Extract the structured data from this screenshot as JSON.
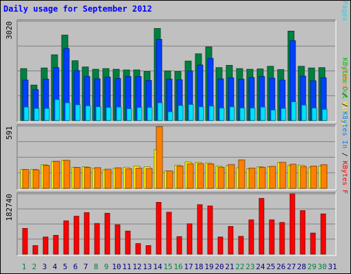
{
  "colors": {
    "background": "#c0c0c0",
    "hits": "#008040",
    "files": "#0040ff",
    "pages": "#00e0ff",
    "visits": "#ffff00",
    "sites": "#ff8000",
    "kbin": "#0080ff",
    "kbout": "#00c000",
    "kbf": "#ff0000",
    "title": "#0000ff",
    "weekend": "#008040",
    "weekday": "#000080"
  },
  "chart_data": {
    "type": "bar",
    "title": "Daily usage for September 2012",
    "x": [
      "1",
      "2",
      "3",
      "4",
      "5",
      "6",
      "7",
      "8",
      "9",
      "10",
      "11",
      "12",
      "13",
      "14",
      "15",
      "16",
      "17",
      "18",
      "19",
      "20",
      "21",
      "22",
      "23",
      "24",
      "25",
      "26",
      "27",
      "28",
      "29",
      "30",
      "31"
    ],
    "weekend_days": [
      "1",
      "2",
      "8",
      "9",
      "15",
      "16",
      "22",
      "23",
      "29",
      "30"
    ],
    "panels": [
      {
        "name": "top",
        "ymax_label": "3020",
        "ymax": 3020,
        "right_label": [
          {
            "text": "Pages",
            "color": "#00e0ff"
          },
          {
            "text": " / ",
            "color": "#000000"
          },
          {
            "text": "Files",
            "color": "#0040ff"
          },
          {
            "text": " / ",
            "color": "#000000"
          },
          {
            "text": "Hits",
            "color": "#008040"
          }
        ],
        "series": [
          {
            "name": "Hits",
            "values": [
              1580,
              1080,
              1600,
              2000,
              2600,
              1820,
              1630,
              1560,
              1580,
              1560,
              1540,
              1540,
              1490,
              2800,
              1510,
              1490,
              1810,
              2030,
              2240,
              1610,
              1680,
              1580,
              1560,
              1570,
              1650,
              1550,
              2720,
              1650,
              1600,
              1610,
              null
            ]
          },
          {
            "name": "Files",
            "values": [
              1230,
              940,
              1260,
              1610,
              2190,
              1520,
              1340,
              1270,
              1320,
              1280,
              1340,
              1340,
              1220,
              2470,
              1260,
              1240,
              1510,
              1690,
              1890,
              1270,
              1300,
              1260,
              1310,
              1340,
              1290,
              1230,
              2430,
              1350,
              1210,
              1300,
              null
            ]
          },
          {
            "name": "Pages",
            "values": [
              410,
              370,
              370,
              640,
              540,
              480,
              450,
              420,
              400,
              410,
              360,
              400,
              400,
              540,
              270,
              460,
              490,
              420,
              440,
              380,
              420,
              380,
              380,
              410,
              320,
              370,
              570,
              470,
              380,
              340,
              null
            ]
          }
        ]
      },
      {
        "name": "middle",
        "ymax_label": "591",
        "ymax": 591,
        "right_label": [
          {
            "text": "Visits",
            "color": "#ffff00"
          },
          {
            "text": " / ",
            "color": "#000000"
          },
          {
            "text": "Sites",
            "color": "#ff8000"
          }
        ],
        "series": [
          {
            "name": "Visits",
            "values": [
              180,
              180,
              225,
              255,
              265,
              200,
              205,
              190,
              175,
              190,
              200,
              210,
              205,
              366,
              165,
              220,
              250,
              245,
              240,
              210,
              215,
              195,
              185,
              205,
              205,
              245,
              215,
              220,
              195,
              210,
              null
            ]
          },
          {
            "name": "Sites",
            "values": [
              178,
              176,
              218,
              258,
              266,
              198,
              199,
              196,
              182,
              195,
              187,
              193,
              189,
              585,
              165,
              212,
              234,
              234,
              232,
              200,
              226,
              270,
              193,
              200,
              209,
              247,
              229,
              208,
              212,
              225,
              null
            ]
          }
        ]
      },
      {
        "name": "bottom",
        "ymax_label": "182740",
        "ymax": 182740,
        "right_label": [
          {
            "text": "KBytes F",
            "color": "#ff0000"
          },
          {
            "text": " / ",
            "color": "#000000"
          },
          {
            "text": "KBytes In",
            "color": "#0080ff"
          },
          {
            "text": " / ",
            "color": "#000000"
          },
          {
            "text": "KBytes Out",
            "color": "#00c000"
          }
        ],
        "series": [
          {
            "name": "KBytes F",
            "values": [
              78000,
              26000,
              52000,
              57000,
              101000,
              115000,
              126000,
              93000,
              124000,
              89000,
              70000,
              32000,
              26000,
              157000,
              127000,
              53000,
              92000,
              150000,
              146000,
              52000,
              84000,
              54000,
              104000,
              169000,
              104000,
              96000,
              183000,
              132000,
              64000,
              122000,
              null
            ]
          }
        ]
      }
    ]
  }
}
